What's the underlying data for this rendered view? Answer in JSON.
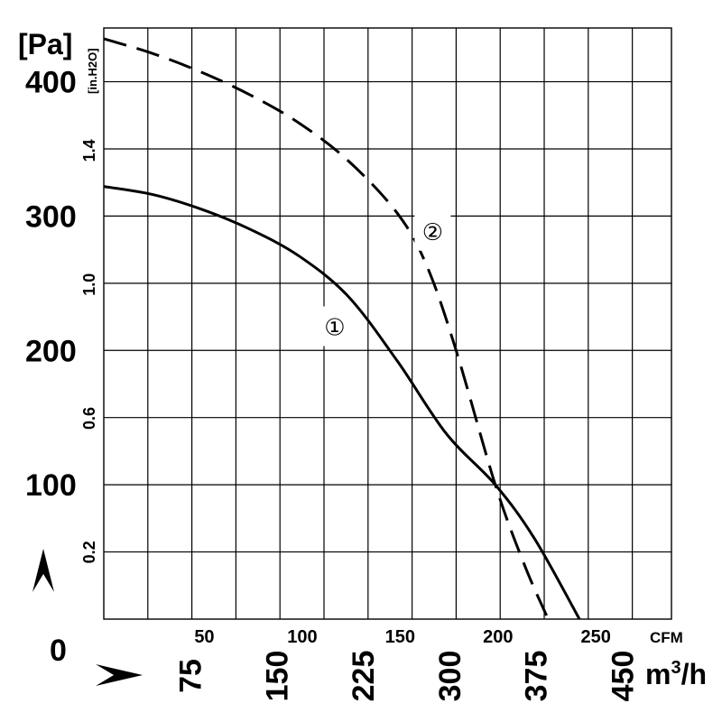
{
  "chart_data": {
    "type": "line",
    "title": "",
    "y_primary": {
      "unit_label": "[Pa]",
      "ticks": [
        "100",
        "200",
        "300",
        "400"
      ],
      "tick_values": [
        100,
        200,
        300,
        400
      ],
      "zero_label": "0",
      "range": [
        0,
        440
      ]
    },
    "y_secondary": {
      "unit_label": "[in.H2O]",
      "ticks": [
        "0.2",
        "0.6",
        "1.0",
        "1.4"
      ],
      "tick_values": [
        0.2,
        0.6,
        1.0,
        1.4
      ]
    },
    "x_cfm": {
      "unit_label": "CFM",
      "ticks": [
        "50",
        "100",
        "150",
        "200",
        "250"
      ],
      "tick_values": [
        50,
        100,
        150,
        200,
        250
      ],
      "range": [
        0,
        290
      ]
    },
    "x_m3h": {
      "unit_label": "m3/h",
      "ticks": [
        "75",
        "150",
        "225",
        "300",
        "375",
        "450"
      ],
      "tick_values": [
        75,
        150,
        225,
        300,
        375,
        450
      ]
    },
    "series": [
      {
        "name": "1",
        "label": "①",
        "style": "solid",
        "color": "#000000",
        "label_at": [
          118,
          218
        ],
        "points": [
          [
            0,
            322
          ],
          [
            25,
            316
          ],
          [
            50,
            305
          ],
          [
            75,
            290
          ],
          [
            100,
            270
          ],
          [
            125,
            240
          ],
          [
            150,
            192
          ],
          [
            175,
            138
          ],
          [
            200,
            100
          ],
          [
            220,
            60
          ],
          [
            243,
            0
          ]
        ]
      },
      {
        "name": "2",
        "label": "②",
        "style": "dashed",
        "color": "#000000",
        "label_at": [
          168,
          289
        ],
        "points": [
          [
            0,
            432
          ],
          [
            25,
            421
          ],
          [
            50,
            407
          ],
          [
            75,
            390
          ],
          [
            100,
            369
          ],
          [
            125,
            341
          ],
          [
            150,
            302
          ],
          [
            165,
            263
          ],
          [
            180,
            200
          ],
          [
            200,
            100
          ],
          [
            215,
            40
          ],
          [
            227,
            0
          ]
        ]
      }
    ],
    "grid": true
  }
}
